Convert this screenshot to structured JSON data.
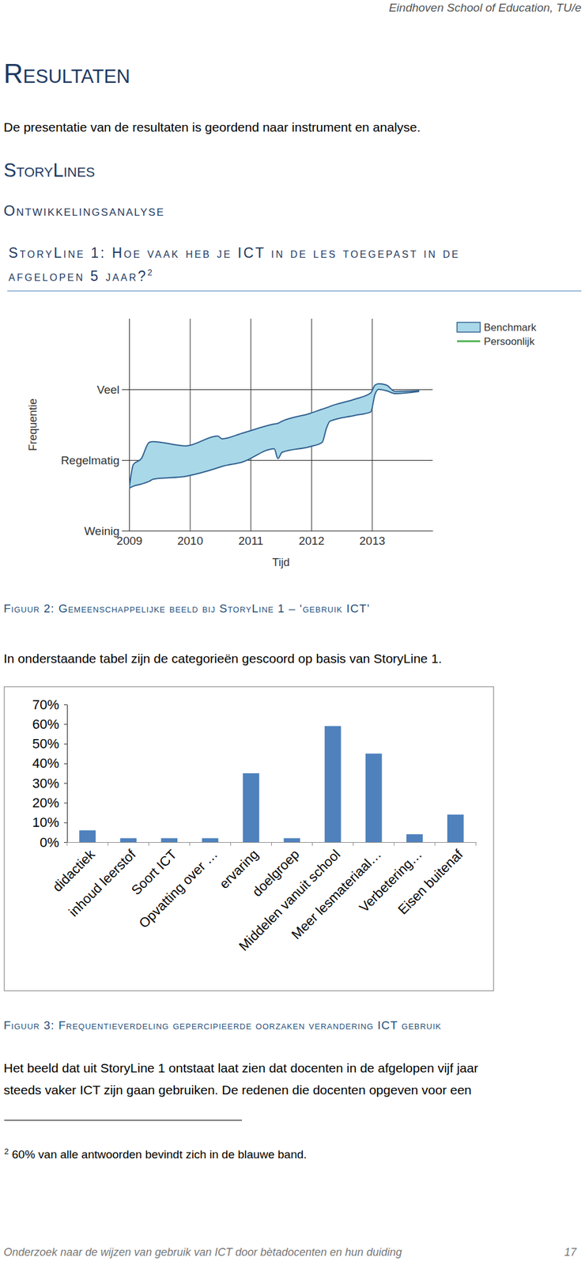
{
  "header": {
    "text": "Eindhoven School of Education, TU/e"
  },
  "section_title": "Resultaten",
  "intro": "De presentatie van de resultaten is geordend naar instrument en analyse.",
  "subsection_title": "StoryLines",
  "subsubsection_title": "Ontwikkelingsanalyse",
  "heading": {
    "lines": [
      "StoryLine 1: Hoe vaak heb je ICT in de les toegepast in de",
      "afgelopen 5 jaar?"
    ],
    "footnote_ref": "2"
  },
  "figure_captions": [
    "Figuur 2: Gemeenschappelijke beeld bij StoryLine 1 – ‘gebruik ICT’",
    "Figuur 3: Frequentieverdeling gepercipieerde oorzaken verandering ICT gebruik"
  ],
  "table_intro": "In onderstaande tabel zijn de categorieën gescoord op basis van StoryLine 1.",
  "paragraph": {
    "lines": [
      "Het beeld dat uit StoryLine 1 ontstaat laat zien dat docenten in de afgelopen vijf jaar",
      "steeds vaker ICT zijn gaan gebruiken. De redenen die docenten opgeven voor een"
    ]
  },
  "footnote": {
    "number": "2",
    "text": "60% van alle antwoorden bevindt zich in de blauwe band."
  },
  "footer": {
    "text": "Onderzoek naar de wijzen van gebruik van ICT door bètadocenten en hun duiding",
    "page": "17"
  },
  "chart_data": [
    {
      "type": "area",
      "x_label": "Tijd",
      "y_label": "Frequentie",
      "x": [
        2009.0,
        2009.07,
        2009.2,
        2009.33,
        2009.4,
        2009.93,
        2010.46,
        2010.53,
        2010.86,
        2011.39,
        2011.45,
        2011.52,
        2011.98,
        2012.18,
        2012.25,
        2012.31,
        2012.71,
        2012.98,
        2013.05,
        2013.11,
        2013.24,
        2013.38,
        2013.77
      ],
      "xlim": [
        2009,
        2014
      ],
      "xticks": [
        2009,
        2010,
        2011,
        2012,
        2013
      ],
      "ylim": [
        0,
        3
      ],
      "yticks": [
        {
          "value": 0,
          "label": "Weinig"
        },
        {
          "value": 1,
          "label": "Regelmatig"
        },
        {
          "value": 2,
          "label": "Veel"
        }
      ],
      "grid": true,
      "legend": "top-right",
      "series": [
        {
          "name": "Benchmark",
          "type": "area",
          "color": "#a9d8e8",
          "lower": [
            0.6,
            0.63,
            0.66,
            0.7,
            0.73,
            0.77,
            0.89,
            0.91,
            0.97,
            1.16,
            1.02,
            1.11,
            1.19,
            1.25,
            1.45,
            1.55,
            1.63,
            1.68,
            1.93,
            2.0,
            1.98,
            1.94,
            1.97
          ],
          "upper": [
            0.6,
            0.94,
            1.02,
            1.25,
            1.26,
            1.2,
            1.34,
            1.3,
            1.38,
            1.51,
            1.52,
            1.55,
            1.66,
            1.72,
            1.74,
            1.76,
            1.86,
            1.95,
            2.06,
            2.08,
            2.06,
            1.97,
            1.98
          ]
        },
        {
          "name": "Persoonlijk",
          "type": "line",
          "color": "#4caf50",
          "values": [
            null,
            null,
            null,
            null,
            null,
            null,
            null,
            null,
            null,
            null,
            null,
            null,
            null,
            null,
            null,
            null,
            null,
            null,
            null,
            null,
            null,
            null,
            null
          ]
        }
      ]
    },
    {
      "type": "bar",
      "categories": [
        "didactiek",
        "inhoud leerstof",
        "Soort ICT",
        "Opvatting over …",
        "ervaring",
        "doelgroep",
        "Middelen vanuit school",
        "Meer lesmateriaal…",
        "Verbetering…",
        "Eisen buitenaf"
      ],
      "values": [
        6,
        2,
        2,
        2,
        35,
        2,
        59,
        45,
        4,
        14
      ],
      "color": "#4f81bd",
      "ylim": [
        0,
        70
      ],
      "yticks": [
        {
          "value": 0,
          "label": "0%"
        },
        {
          "value": 10,
          "label": "10%"
        },
        {
          "value": 20,
          "label": "20%"
        },
        {
          "value": 30,
          "label": "30%"
        },
        {
          "value": 40,
          "label": "40%"
        },
        {
          "value": 50,
          "label": "50%"
        },
        {
          "value": 60,
          "label": "60%"
        },
        {
          "value": 70,
          "label": "70%"
        }
      ],
      "grid": false
    }
  ]
}
